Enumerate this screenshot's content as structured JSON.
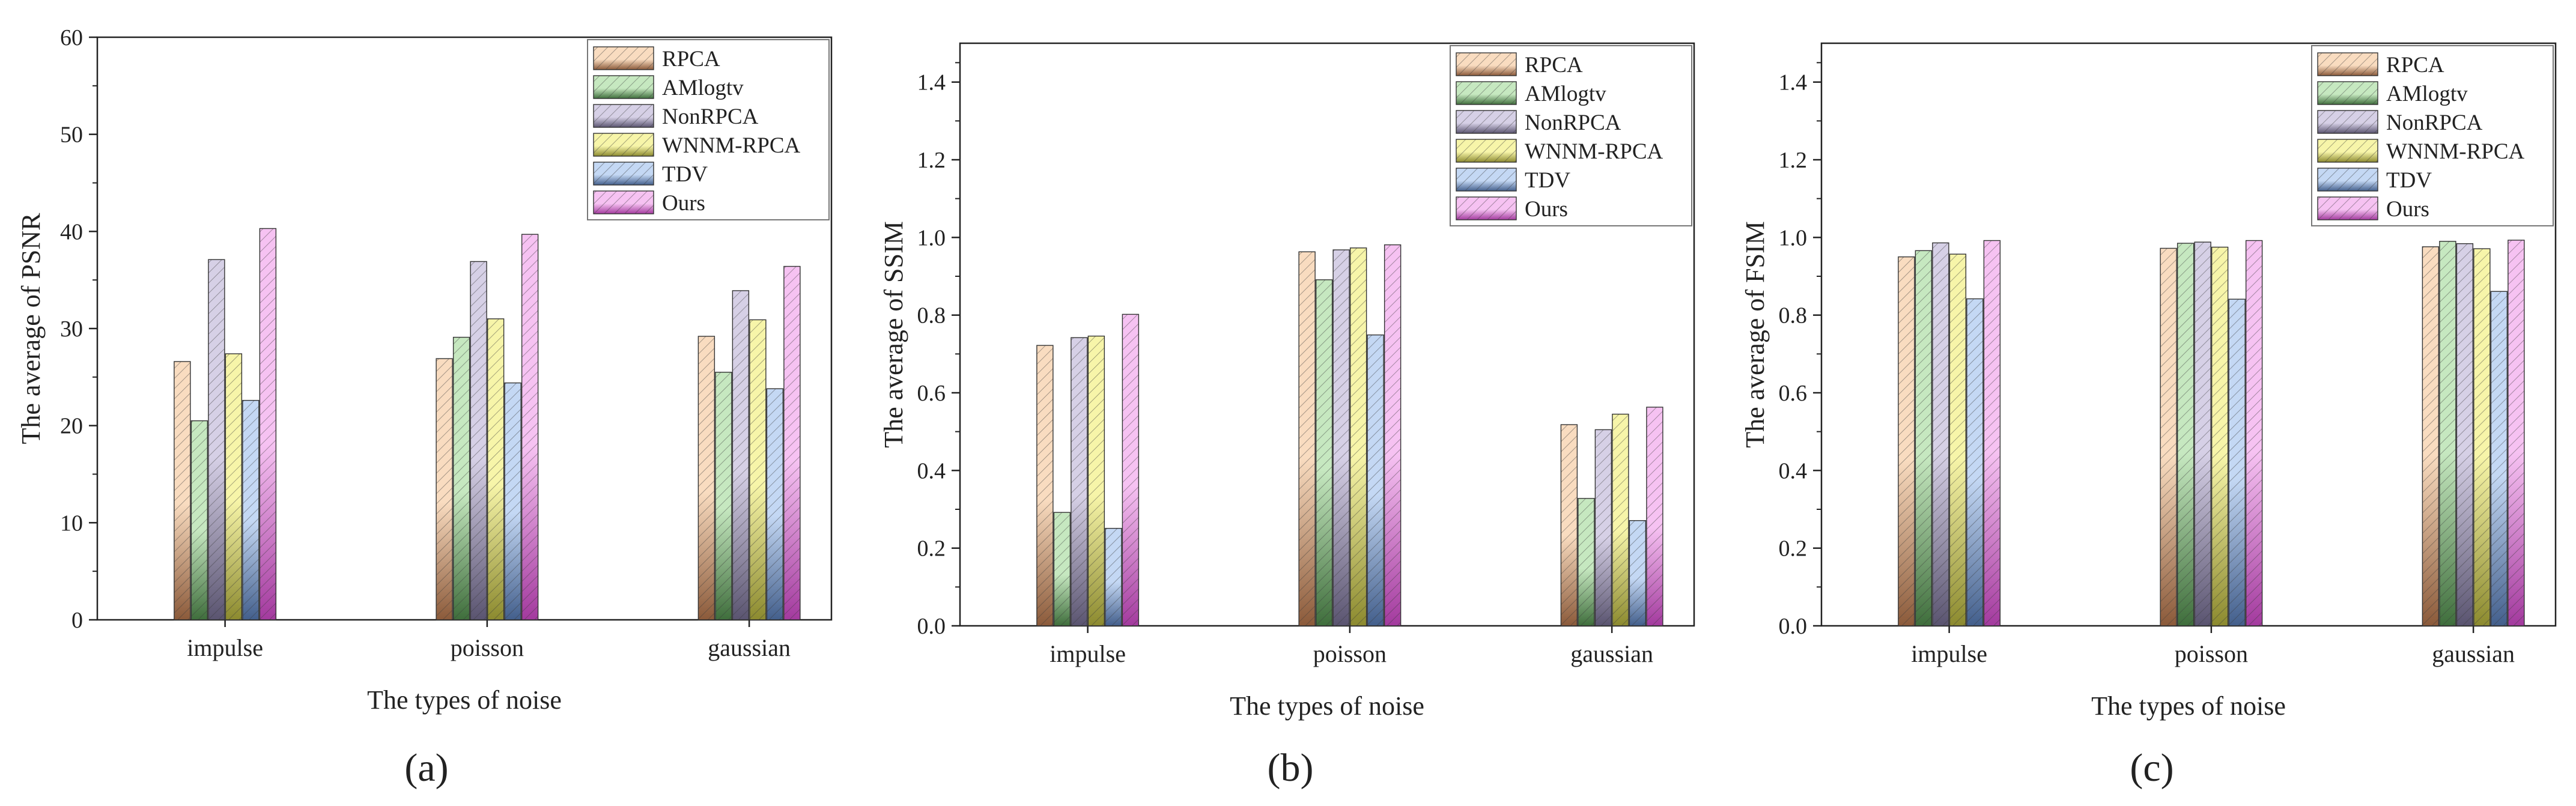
{
  "chart_data": [
    {
      "type": "bar",
      "panel_label": "(a)",
      "title": "",
      "xlabel": "The types of noise",
      "ylabel": "The average of PSNR",
      "ylim": [
        0,
        60
      ],
      "yticks": [
        0,
        10,
        20,
        30,
        40,
        50,
        60
      ],
      "ytick_labels": [
        "0",
        "10",
        "20",
        "30",
        "40",
        "50",
        "60"
      ],
      "legend_position": "top-right",
      "categories": [
        "impulse",
        "poisson",
        "gaussian"
      ],
      "series": [
        {
          "name": "RPCA",
          "values": [
            26.6,
            26.9,
            29.2
          ]
        },
        {
          "name": "AMlogtv",
          "values": [
            20.5,
            29.1,
            25.5
          ]
        },
        {
          "name": "NonRPCA",
          "values": [
            37.1,
            36.9,
            33.9
          ]
        },
        {
          "name": "WNNM-RPCA",
          "values": [
            27.4,
            31.0,
            30.9
          ]
        },
        {
          "name": "TDV",
          "values": [
            22.6,
            24.4,
            23.8
          ]
        },
        {
          "name": "Ours",
          "values": [
            40.3,
            39.7,
            36.4
          ]
        }
      ]
    },
    {
      "type": "bar",
      "panel_label": "(b)",
      "title": "",
      "xlabel": "The types of noise",
      "ylabel": "The average of SSIM",
      "ylim": [
        0,
        1.5
      ],
      "yticks": [
        0,
        0.2,
        0.4,
        0.6,
        0.8,
        1.0,
        1.2,
        1.4
      ],
      "ytick_labels": [
        "0.0",
        "0.2",
        "0.4",
        "0.6",
        "0.8",
        "1.0",
        "1.2",
        "1.4"
      ],
      "legend_position": "top-right",
      "categories": [
        "impulse",
        "poisson",
        "gaussian"
      ],
      "series": [
        {
          "name": "RPCA",
          "values": [
            0.722,
            0.963,
            0.518
          ]
        },
        {
          "name": "AMlogtv",
          "values": [
            0.292,
            0.891,
            0.328
          ]
        },
        {
          "name": "NonRPCA",
          "values": [
            0.742,
            0.968,
            0.505
          ]
        },
        {
          "name": "WNNM-RPCA",
          "values": [
            0.746,
            0.973,
            0.545
          ]
        },
        {
          "name": "TDV",
          "values": [
            0.251,
            0.749,
            0.271
          ]
        },
        {
          "name": "Ours",
          "values": [
            0.802,
            0.981,
            0.563
          ]
        }
      ]
    },
    {
      "type": "bar",
      "panel_label": "(c)",
      "title": "",
      "xlabel": "The types of noise",
      "ylabel": "The average of FSIM",
      "ylim": [
        0,
        1.5
      ],
      "yticks": [
        0,
        0.2,
        0.4,
        0.6,
        0.8,
        1.0,
        1.2,
        1.4
      ],
      "ytick_labels": [
        "0.0",
        "0.2",
        "0.4",
        "0.6",
        "0.8",
        "1.0",
        "1.2",
        "1.4"
      ],
      "legend_position": "top-right",
      "categories": [
        "impulse",
        "poisson",
        "gaussian"
      ],
      "series": [
        {
          "name": "RPCA",
          "values": [
            0.95,
            0.972,
            0.976
          ]
        },
        {
          "name": "AMlogtv",
          "values": [
            0.966,
            0.985,
            0.99
          ]
        },
        {
          "name": "NonRPCA",
          "values": [
            0.986,
            0.988,
            0.984
          ]
        },
        {
          "name": "WNNM-RPCA",
          "values": [
            0.957,
            0.975,
            0.971
          ]
        },
        {
          "name": "TDV",
          "values": [
            0.842,
            0.841,
            0.861
          ]
        },
        {
          "name": "Ours",
          "values": [
            0.992,
            0.992,
            0.993
          ]
        }
      ]
    }
  ],
  "series_colors": {
    "RPCA": {
      "light": "#f9dcc0",
      "dark": "#8b5a3a"
    },
    "AMlogtv": {
      "light": "#c6e8c0",
      "dark": "#3f6e3c"
    },
    "NonRPCA": {
      "light": "#d6d0e6",
      "dark": "#5a5470"
    },
    "WNNM-RPCA": {
      "light": "#f7f5a9",
      "dark": "#8c8a2f"
    },
    "TDV": {
      "light": "#c4d8f4",
      "dark": "#435f8c"
    },
    "Ours": {
      "light": "#f6c2f2",
      "dark": "#a33a9e"
    }
  }
}
